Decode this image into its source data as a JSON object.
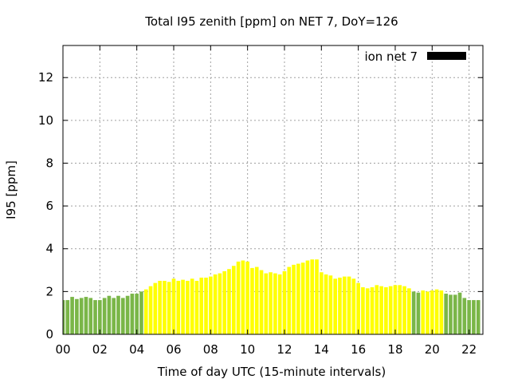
{
  "chart_data": {
    "type": "bar",
    "title": "Total I95 zenith [ppm] on NET 7, DoY=126",
    "xlabel": "Time of day UTC (15-minute intervals)",
    "ylabel": "I95 [ppm]",
    "xlim": [
      0,
      22.75
    ],
    "ylim": [
      0,
      13.5
    ],
    "x_ticks": [
      "00",
      "02",
      "04",
      "06",
      "08",
      "10",
      "12",
      "14",
      "16",
      "18",
      "20",
      "22"
    ],
    "y_ticks": [
      "0",
      "2",
      "4",
      "6",
      "8",
      "10",
      "12"
    ],
    "grid": true,
    "legend": {
      "position": "top-right",
      "label": "ion net 7",
      "color": "#000000"
    },
    "colors": {
      "green": "#7ab648",
      "yellow": "#ffff00"
    },
    "series": [
      {
        "name": "ion net 7",
        "bin_hours": 0.25,
        "start_hour": 0,
        "values": [
          1.6,
          1.6,
          1.75,
          1.65,
          1.7,
          1.75,
          1.7,
          1.6,
          1.6,
          1.7,
          1.8,
          1.7,
          1.8,
          1.7,
          1.8,
          1.9,
          1.9,
          2.0,
          2.1,
          2.25,
          2.4,
          2.5,
          2.5,
          2.45,
          2.6,
          2.5,
          2.55,
          2.5,
          2.6,
          2.5,
          2.65,
          2.65,
          2.7,
          2.8,
          2.85,
          2.95,
          3.05,
          3.2,
          3.4,
          3.45,
          3.4,
          3.1,
          3.15,
          3.0,
          2.85,
          2.9,
          2.85,
          2.8,
          2.95,
          3.15,
          3.25,
          3.3,
          3.35,
          3.45,
          3.5,
          3.5,
          2.9,
          2.8,
          2.75,
          2.6,
          2.65,
          2.7,
          2.7,
          2.6,
          2.4,
          2.2,
          2.15,
          2.2,
          2.3,
          2.25,
          2.2,
          2.25,
          2.3,
          2.3,
          2.25,
          2.15,
          2.0,
          1.95,
          2.05,
          2.0,
          2.05,
          2.1,
          2.05,
          1.9,
          1.85,
          1.85,
          1.95,
          1.7,
          1.6,
          1.6,
          1.6
        ],
        "colors": [
          "green",
          "green",
          "green",
          "green",
          "green",
          "green",
          "green",
          "green",
          "green",
          "green",
          "green",
          "green",
          "green",
          "green",
          "green",
          "green",
          "green",
          "green",
          "yellow",
          "yellow",
          "yellow",
          "yellow",
          "yellow",
          "yellow",
          "yellow",
          "yellow",
          "yellow",
          "yellow",
          "yellow",
          "yellow",
          "yellow",
          "yellow",
          "yellow",
          "yellow",
          "yellow",
          "yellow",
          "yellow",
          "yellow",
          "yellow",
          "yellow",
          "yellow",
          "yellow",
          "yellow",
          "yellow",
          "yellow",
          "yellow",
          "yellow",
          "yellow",
          "yellow",
          "yellow",
          "yellow",
          "yellow",
          "yellow",
          "yellow",
          "yellow",
          "yellow",
          "yellow",
          "yellow",
          "yellow",
          "yellow",
          "yellow",
          "yellow",
          "yellow",
          "yellow",
          "yellow",
          "yellow",
          "yellow",
          "yellow",
          "yellow",
          "yellow",
          "yellow",
          "yellow",
          "yellow",
          "yellow",
          "yellow",
          "yellow",
          "green",
          "green",
          "yellow",
          "yellow",
          "yellow",
          "yellow",
          "yellow",
          "green",
          "green",
          "green",
          "green",
          "green",
          "green",
          "green",
          "green"
        ]
      }
    ]
  }
}
